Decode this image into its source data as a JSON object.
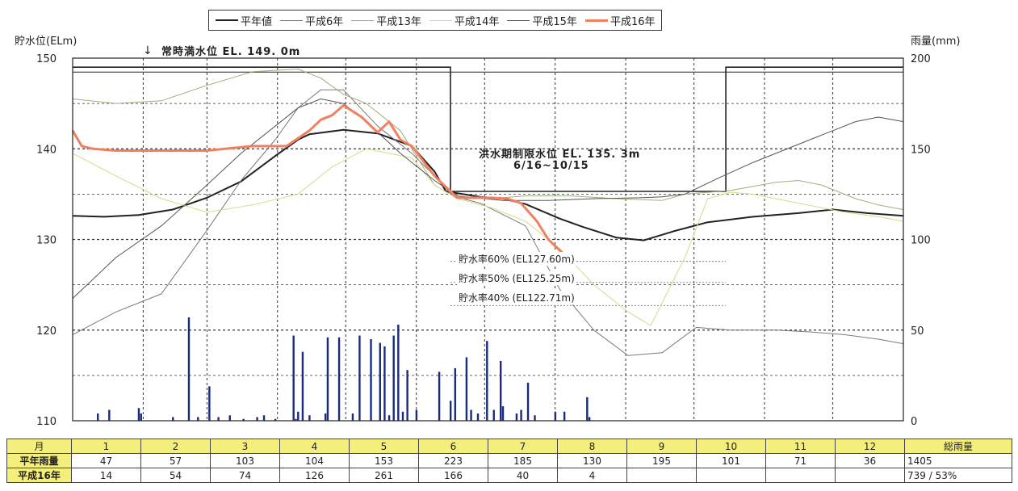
{
  "legend": [
    {
      "label": "平年値",
      "color": "#222222",
      "width": 2
    },
    {
      "label": "平成6年",
      "color": "#7a7a7a",
      "width": 1
    },
    {
      "label": "平成13年",
      "color": "#9ab07a",
      "width": 1
    },
    {
      "label": "平成14年",
      "color": "#d9d98a",
      "width": 1
    },
    {
      "label": "平成15年",
      "color": "#555555",
      "width": 1
    },
    {
      "label": "平成16年",
      "color": "#f08060",
      "width": 3
    }
  ],
  "axes": {
    "left_title": "貯水位(ELm)",
    "right_title": "雨量(mm)"
  },
  "notes": {
    "full_level": "常時満水位 EL. 149. 0m",
    "flood_level_line1": "洪水期制限水位 EL. 135. 3m",
    "flood_level_line2": "6/16~10/15",
    "rate60": "貯水率60% (EL127.60m)",
    "rate50": "貯水率50% (EL125.25m)",
    "rate40": "貯水率40% (EL122.71m)"
  },
  "chart_data": {
    "type": "line",
    "x_unit": "day_of_year",
    "xlim": [
      1,
      366
    ],
    "ylim": [
      110,
      150
    ],
    "y2lim": [
      0,
      200
    ],
    "yticks": [
      110,
      120,
      130,
      140,
      150
    ],
    "y2ticks": [
      0,
      50,
      100,
      150,
      200
    ],
    "grid": true,
    "legend_position": "top",
    "reference_levels": [
      {
        "name": "常時満水位",
        "value": 149.0
      },
      {
        "name": "洪水期制限水位",
        "value": 135.3,
        "period": "6/16~10/15"
      },
      {
        "name": "貯水率60%",
        "value": 127.6
      },
      {
        "name": "貯水率50%",
        "value": 125.25
      },
      {
        "name": "貯水率40%",
        "value": 122.71
      }
    ],
    "series": [
      {
        "name": "平年値",
        "x": [
          1,
          15,
          30,
          45,
          60,
          75,
          90,
          100,
          105,
          120,
          135,
          150,
          160,
          165,
          180,
          190,
          200,
          215,
          225,
          240,
          252,
          265,
          280,
          300,
          320,
          335,
          350,
          366
        ],
        "y": [
          132.6,
          132.5,
          132.7,
          133.3,
          134.6,
          136.4,
          139.2,
          141.0,
          141.6,
          142.1,
          141.7,
          140.3,
          137.5,
          135.3,
          134.7,
          134.5,
          133.9,
          132.3,
          131.4,
          130.2,
          129.9,
          130.9,
          131.9,
          132.5,
          132.9,
          133.3,
          132.9,
          132.6
        ]
      },
      {
        "name": "平成6年",
        "x": [
          1,
          20,
          40,
          60,
          75,
          90,
          100,
          110,
          120,
          135,
          150,
          160,
          168,
          180,
          200,
          215,
          230,
          245,
          260,
          275,
          290,
          310,
          325,
          340,
          355,
          366
        ],
        "y": [
          119.5,
          122.0,
          124.0,
          131.0,
          136.5,
          141.0,
          144.5,
          146.5,
          146.5,
          142.5,
          139.5,
          137.0,
          134.8,
          134.0,
          131.5,
          124.5,
          120.0,
          117.2,
          117.5,
          120.3,
          120.0,
          120.0,
          119.8,
          119.5,
          119.0,
          118.5
        ]
      },
      {
        "name": "平成13年",
        "x": [
          1,
          20,
          40,
          60,
          80,
          100,
          110,
          120,
          130,
          145,
          160,
          170,
          185,
          200,
          220,
          240,
          260,
          270,
          290,
          310,
          320,
          330,
          345,
          355,
          366
        ],
        "y": [
          145.5,
          145.0,
          145.3,
          147.0,
          148.5,
          148.8,
          147.8,
          146.0,
          145.0,
          142.0,
          136.0,
          134.5,
          134.5,
          134.8,
          134.8,
          134.5,
          134.3,
          135.0,
          135.4,
          136.3,
          136.5,
          136.0,
          134.5,
          133.8,
          133.3
        ]
      },
      {
        "name": "平成14年",
        "x": [
          1,
          20,
          40,
          60,
          80,
          100,
          115,
          130,
          150,
          160,
          170,
          185,
          200,
          215,
          230,
          245,
          255,
          270,
          280,
          290,
          300,
          320,
          340,
          355,
          366
        ],
        "y": [
          139.5,
          137.0,
          134.5,
          133.0,
          133.8,
          135.0,
          138.0,
          140.0,
          139.0,
          136.0,
          134.5,
          133.5,
          132.0,
          129.0,
          125.0,
          122.0,
          120.5,
          128.0,
          134.5,
          135.2,
          135.0,
          134.0,
          133.0,
          132.5,
          132.0
        ]
      },
      {
        "name": "平成15年",
        "x": [
          1,
          20,
          40,
          60,
          75,
          90,
          100,
          110,
          120,
          130,
          145,
          160,
          170,
          190,
          210,
          230,
          250,
          260,
          270,
          285,
          300,
          320,
          335,
          345,
          355,
          366
        ],
        "y": [
          123.5,
          128.0,
          131.5,
          136.0,
          139.5,
          142.5,
          144.5,
          145.5,
          145.0,
          143.0,
          139.5,
          136.5,
          134.8,
          134.3,
          134.3,
          134.5,
          134.6,
          134.7,
          135.0,
          136.8,
          138.5,
          140.5,
          142.0,
          143.0,
          143.5,
          143.0
        ]
      },
      {
        "name": "平成16年",
        "x": [
          1,
          5,
          10,
          20,
          40,
          60,
          80,
          95,
          105,
          110,
          115,
          120,
          128,
          135,
          140,
          145,
          150,
          160,
          170,
          180,
          185,
          192,
          198,
          205,
          210,
          215,
          220
        ],
        "y": [
          142.0,
          140.3,
          140.0,
          139.8,
          139.8,
          139.8,
          140.3,
          140.3,
          142.0,
          143.2,
          143.7,
          144.8,
          143.5,
          141.8,
          143.0,
          141.0,
          140.3,
          137.0,
          134.6,
          134.6,
          134.6,
          134.5,
          134.0,
          132.0,
          130.0,
          128.8,
          127.6
        ]
      }
    ],
    "rainfall_bars": {
      "name": "雨量",
      "x": [
        12,
        17,
        30,
        31,
        45,
        52,
        56,
        61,
        65,
        70,
        76,
        82,
        85,
        90,
        98,
        99,
        100,
        102,
        105,
        112,
        113,
        118,
        124,
        127,
        132,
        136,
        138,
        140,
        142,
        144,
        146,
        148,
        152,
        162,
        167,
        169,
        174,
        176,
        179,
        183,
        186,
        189,
        190,
        196,
        198,
        201,
        204,
        213,
        217,
        227,
        228
      ],
      "y": [
        4,
        6,
        7,
        4,
        2,
        57,
        2,
        19,
        2,
        3,
        1,
        2,
        3,
        1,
        47,
        1,
        5,
        38,
        3,
        4,
        46,
        46,
        4,
        47,
        45,
        43,
        41,
        3,
        47,
        53,
        5,
        28,
        6,
        27,
        11,
        29,
        35,
        6,
        4,
        44,
        6,
        33,
        8,
        4,
        6,
        21,
        3,
        5,
        5,
        13,
        2
      ]
    },
    "rain_table": {
      "months": [
        "1",
        "2",
        "3",
        "4",
        "5",
        "6",
        "7",
        "8",
        "9",
        "10",
        "11",
        "12"
      ],
      "normal": [
        47,
        57,
        103,
        104,
        153,
        223,
        185,
        130,
        195,
        101,
        71,
        36
      ],
      "normal_total": 1405,
      "h16": [
        14,
        54,
        74,
        126,
        261,
        166,
        40,
        4,
        null,
        null,
        null,
        null
      ],
      "h16_total": 739,
      "h16_ratio": "53%"
    }
  },
  "table": {
    "month_label": "月",
    "total_label": "総雨量",
    "row1_label": "平年雨量",
    "row2_label": "平成16年",
    "h16_total_text": "739 / 53%"
  }
}
